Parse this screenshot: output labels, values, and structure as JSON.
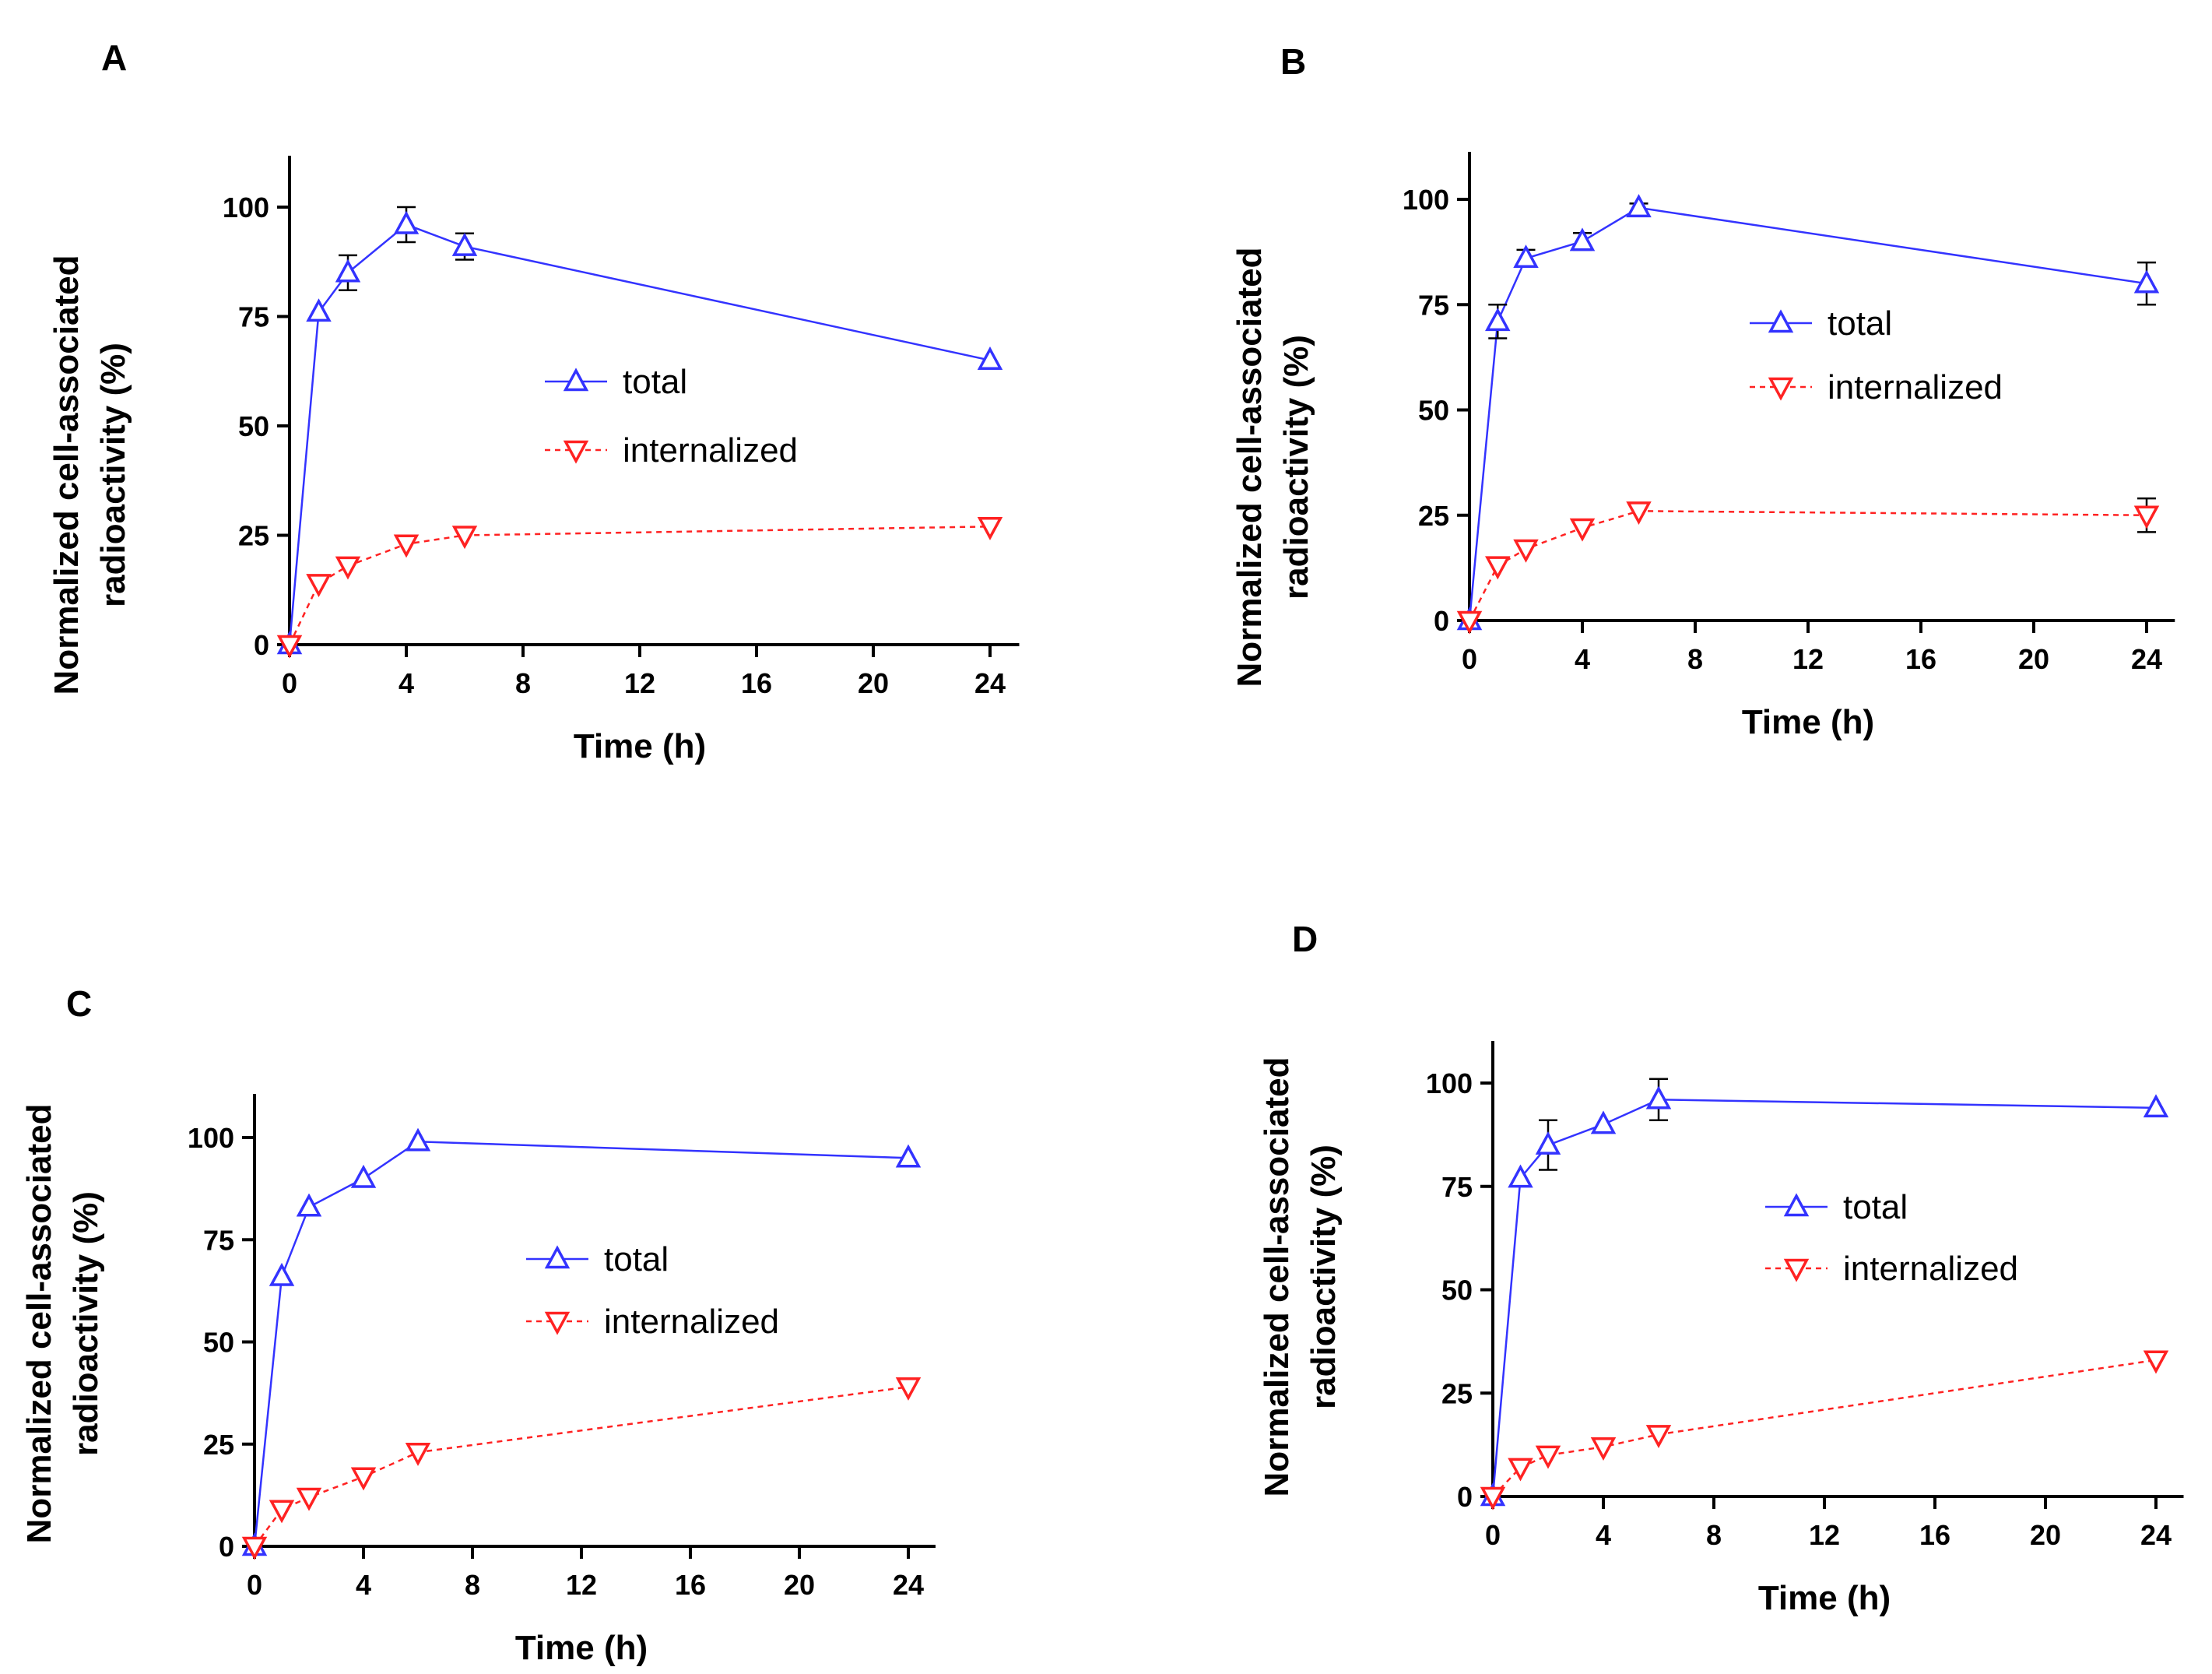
{
  "chart_data": [
    {
      "type": "line",
      "panel": "A",
      "xlabel": "Time (h)",
      "ylabel_line1": "Normalized cell-associated",
      "ylabel_line2": "radioactivity (%)",
      "xlim": [
        0,
        25
      ],
      "ylim": [
        0,
        110
      ],
      "xticks": [
        0,
        4,
        8,
        12,
        16,
        20,
        24
      ],
      "yticks": [
        0,
        25,
        50,
        75,
        100
      ],
      "legend": "center-right",
      "series": [
        {
          "name": "total",
          "color": "#3333ff",
          "style": "solid",
          "marker": "triangle-up",
          "x": [
            0,
            1,
            2,
            4,
            6,
            24
          ],
          "values": [
            0,
            76,
            85,
            96,
            91,
            65
          ],
          "errors": [
            0,
            0,
            4,
            4,
            3,
            0
          ]
        },
        {
          "name": "internalized",
          "color": "#ff2222",
          "style": "dashed",
          "marker": "triangle-down",
          "x": [
            0,
            1,
            2,
            4,
            6,
            24
          ],
          "values": [
            0,
            14,
            18,
            23,
            25,
            27
          ],
          "errors": [
            0,
            0,
            0,
            0,
            0,
            0
          ]
        }
      ]
    },
    {
      "type": "line",
      "panel": "B",
      "xlabel": "Time (h)",
      "ylabel_line1": "Normalized cell-associated",
      "ylabel_line2": "radioactivity (%)",
      "xlim": [
        0,
        25
      ],
      "ylim": [
        0,
        110
      ],
      "xticks": [
        0,
        4,
        8,
        12,
        16,
        20,
        24
      ],
      "yticks": [
        0,
        25,
        50,
        75,
        100
      ],
      "legend": "center-right",
      "series": [
        {
          "name": "total",
          "color": "#3333ff",
          "style": "solid",
          "marker": "triangle-up",
          "x": [
            0,
            1,
            2,
            4,
            6,
            24
          ],
          "values": [
            0,
            71,
            86,
            90,
            98,
            80
          ],
          "errors": [
            0,
            4,
            2,
            2,
            1,
            5
          ]
        },
        {
          "name": "internalized",
          "color": "#ff2222",
          "style": "dashed",
          "marker": "triangle-down",
          "x": [
            0,
            1,
            2,
            4,
            6,
            24
          ],
          "values": [
            0,
            13,
            17,
            22,
            26,
            25
          ],
          "errors": [
            0,
            0,
            0,
            0,
            0,
            4
          ]
        }
      ]
    },
    {
      "type": "line",
      "panel": "C",
      "xlabel": "Time (h)",
      "ylabel_line1": "Normalized cell-associated",
      "ylabel_line2": "radioactivity (%)",
      "xlim": [
        0,
        25
      ],
      "ylim": [
        0,
        110
      ],
      "xticks": [
        0,
        4,
        8,
        12,
        16,
        20,
        24
      ],
      "yticks": [
        0,
        25,
        50,
        75,
        100
      ],
      "legend": "center-right",
      "series": [
        {
          "name": "total",
          "color": "#3333ff",
          "style": "solid",
          "marker": "triangle-up",
          "x": [
            0,
            1,
            2,
            4,
            6,
            24
          ],
          "values": [
            0,
            66,
            83,
            90,
            99,
            95
          ],
          "errors": [
            0,
            0,
            0,
            0,
            0,
            0
          ]
        },
        {
          "name": "internalized",
          "color": "#ff2222",
          "style": "dashed",
          "marker": "triangle-down",
          "x": [
            0,
            1,
            2,
            4,
            6,
            24
          ],
          "values": [
            0,
            9,
            12,
            17,
            23,
            39
          ],
          "errors": [
            0,
            0,
            0,
            0,
            0,
            0
          ]
        }
      ]
    },
    {
      "type": "line",
      "panel": "D",
      "xlabel": "Time (h)",
      "ylabel_line1": "Normalized cell-associated",
      "ylabel_line2": "radioactivity (%)",
      "xlim": [
        0,
        25
      ],
      "ylim": [
        0,
        110
      ],
      "xticks": [
        0,
        4,
        8,
        12,
        16,
        20,
        24
      ],
      "yticks": [
        0,
        25,
        50,
        75,
        100
      ],
      "legend": "center-right",
      "series": [
        {
          "name": "total",
          "color": "#3333ff",
          "style": "solid",
          "marker": "triangle-up",
          "x": [
            0,
            1,
            2,
            4,
            6,
            24
          ],
          "values": [
            0,
            77,
            85,
            90,
            96,
            94
          ],
          "errors": [
            0,
            0,
            6,
            0,
            5,
            0
          ]
        },
        {
          "name": "internalized",
          "color": "#ff2222",
          "style": "dashed",
          "marker": "triangle-down",
          "x": [
            0,
            1,
            2,
            4,
            6,
            24
          ],
          "values": [
            0,
            7,
            10,
            12,
            15,
            33
          ],
          "errors": [
            0,
            0,
            0,
            0,
            0,
            0
          ]
        }
      ]
    }
  ]
}
